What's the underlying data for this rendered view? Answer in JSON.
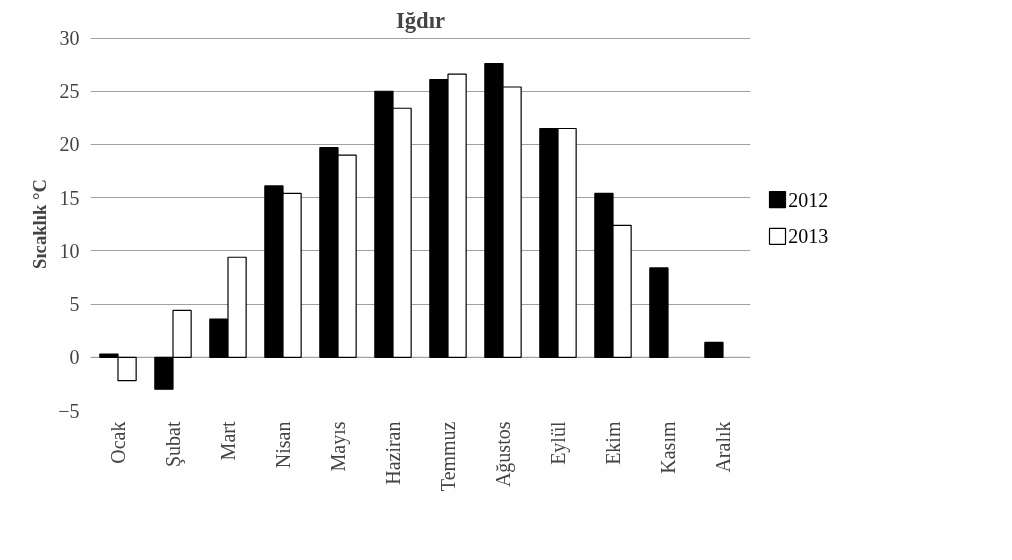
{
  "chart_data": {
    "type": "bar",
    "title": "Iğdır",
    "ylabel": "Sıcaklık °C",
    "categories": [
      "Ocak",
      "Şubat",
      "Mart",
      "Nisan",
      "Mayıs",
      "Haziran",
      "Temmuz",
      "Ağustos",
      "Eylül",
      "Ekim",
      "Kasım",
      "Aralık"
    ],
    "series": [
      {
        "name": "2012",
        "color": "#000000",
        "values": [
          0.3,
          -3.0,
          3.6,
          16.1,
          19.7,
          25.0,
          26.1,
          27.6,
          21.5,
          15.4,
          8.4,
          1.4
        ]
      },
      {
        "name": "2013",
        "color": "#ffffff",
        "values": [
          -2.2,
          4.4,
          9.4,
          15.4,
          19.0,
          23.4,
          26.6,
          25.4,
          21.5,
          12.4,
          null,
          null
        ]
      }
    ],
    "ylim": [
      -5,
      30
    ],
    "yticks": [
      -5,
      0,
      5,
      10,
      15,
      20,
      25,
      30
    ],
    "grid": "y",
    "legend": "right"
  }
}
